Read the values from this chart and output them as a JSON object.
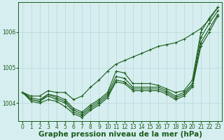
{
  "xlabel": "Graphe pression niveau de la mer (hPa)",
  "background_color": "#d6eef0",
  "grid_color": "#b8d8d8",
  "line_color": "#1a5c1a",
  "hours": [
    0,
    1,
    2,
    3,
    4,
    5,
    6,
    7,
    8,
    9,
    10,
    11,
    12,
    13,
    14,
    15,
    16,
    17,
    18,
    19,
    20,
    21,
    22,
    23
  ],
  "lines": [
    [
      1004.3,
      1004.15,
      1004.1,
      1004.25,
      1004.2,
      1004.1,
      1003.85,
      1003.75,
      1003.95,
      1004.1,
      1004.3,
      1004.9,
      1004.85,
      1004.55,
      1004.55,
      1004.55,
      1004.5,
      1004.4,
      1004.3,
      1004.35,
      1004.65,
      1006.0,
      1006.4,
      1006.7
    ],
    [
      1004.3,
      1004.1,
      1004.05,
      1004.25,
      1004.15,
      1004.05,
      1003.8,
      1003.7,
      1003.9,
      1004.05,
      1004.25,
      1004.75,
      1004.7,
      1004.45,
      1004.45,
      1004.45,
      1004.45,
      1004.35,
      1004.2,
      1004.3,
      1004.55,
      1005.85,
      1006.25,
      1006.6
    ],
    [
      1004.3,
      1004.1,
      1004.05,
      1004.2,
      1004.1,
      1004.0,
      1003.75,
      1003.65,
      1003.85,
      1004.0,
      1004.2,
      1004.65,
      1004.6,
      1004.4,
      1004.4,
      1004.4,
      1004.4,
      1004.3,
      1004.15,
      1004.25,
      1004.5,
      1005.7,
      1006.1,
      1006.5
    ],
    [
      1004.3,
      1004.05,
      1004.0,
      1004.1,
      1004.05,
      1003.9,
      1003.7,
      1003.6,
      1003.8,
      1003.95,
      1004.15,
      1004.6,
      1004.55,
      1004.35,
      1004.35,
      1004.35,
      1004.35,
      1004.25,
      1004.1,
      1004.2,
      1004.45,
      1005.6,
      1006.0,
      1006.45
    ],
    [
      1004.3,
      1004.2,
      1004.2,
      1004.35,
      1004.3,
      1004.3,
      1004.1,
      1004.2,
      1004.45,
      1004.65,
      1004.9,
      1005.1,
      1005.2,
      1005.3,
      1005.4,
      1005.5,
      1005.6,
      1005.65,
      1005.7,
      1005.8,
      1005.95,
      1006.1,
      1006.35,
      1006.7
    ]
  ],
  "ylim": [
    1003.5,
    1006.85
  ],
  "yticks": [
    1004,
    1005,
    1006
  ],
  "xlim": [
    -0.5,
    23.5
  ],
  "xticks": [
    0,
    1,
    2,
    3,
    4,
    5,
    6,
    7,
    8,
    9,
    10,
    11,
    12,
    13,
    14,
    15,
    16,
    17,
    18,
    19,
    20,
    21,
    22,
    23
  ],
  "tick_fontsize": 5.5,
  "xlabel_fontsize": 7.5,
  "marker": "+",
  "marker_size": 3,
  "linewidth": 0.8
}
